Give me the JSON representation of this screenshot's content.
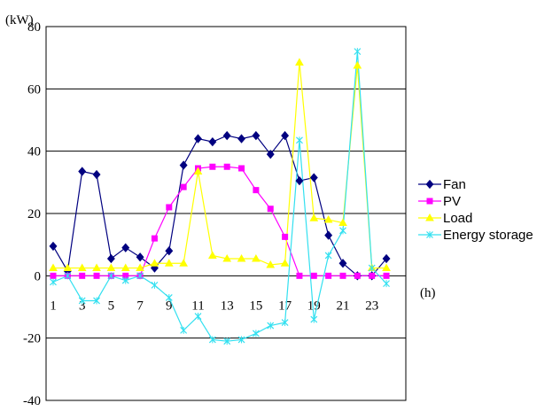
{
  "chart_data": {
    "type": "line",
    "y_unit_label": "(kW)",
    "x_unit_label": "(h)",
    "ylim": [
      -40,
      80
    ],
    "y_ticks": [
      "80",
      "60",
      "40",
      "20",
      "0",
      "-20",
      "-40"
    ],
    "y_tick_values": [
      80,
      60,
      40,
      20,
      0,
      -20,
      -40
    ],
    "gridlines_at": [
      60,
      40,
      20,
      -20
    ],
    "x": [
      1,
      2,
      3,
      4,
      5,
      6,
      7,
      8,
      9,
      10,
      11,
      12,
      13,
      14,
      15,
      16,
      17,
      18,
      19,
      20,
      21,
      22,
      23,
      24
    ],
    "x_tick_labels": [
      "1",
      "3",
      "5",
      "7",
      "9",
      "11",
      "13",
      "15",
      "17",
      "19",
      "21",
      "23"
    ],
    "x_tick_values": [
      1,
      3,
      5,
      7,
      9,
      11,
      13,
      15,
      17,
      19,
      21,
      23
    ],
    "legend_position": "right",
    "series": [
      {
        "name": "Fan",
        "color": "#000080",
        "marker": "diamond",
        "values": [
          9.5,
          1.5,
          33.5,
          32.5,
          5.5,
          9,
          6,
          2.5,
          8,
          35.5,
          44,
          43,
          45,
          44,
          45,
          39,
          45,
          30.5,
          31.5,
          13,
          4,
          0,
          0,
          5.5
        ]
      },
      {
        "name": "PV",
        "color": "#ff00ff",
        "marker": "square",
        "values": [
          0,
          0,
          0,
          0,
          0,
          0,
          0,
          12,
          22,
          28.5,
          34.5,
          35,
          35,
          34.5,
          27.5,
          21.5,
          12.5,
          0,
          0,
          0,
          0,
          0,
          0,
          0
        ]
      },
      {
        "name": "Load",
        "color": "#ffff00",
        "marker": "triangle",
        "values": [
          2.5,
          2.5,
          2.5,
          2.5,
          2.5,
          2.5,
          2.5,
          4,
          4,
          4,
          33.5,
          6.5,
          5.5,
          5.5,
          5.5,
          3.5,
          4,
          68.5,
          18.5,
          18,
          17,
          67.5,
          2.5,
          2.5
        ]
      },
      {
        "name": "Energy storage",
        "color": "#33e0f0",
        "marker": "x",
        "values": [
          -2,
          0,
          -8,
          -8,
          0,
          -1.5,
          0,
          -3,
          -7,
          -17.5,
          -13,
          -20.5,
          -21,
          -20.5,
          -18.5,
          -16,
          -15,
          43.5,
          -14,
          6.5,
          14.5,
          72,
          2.5,
          -2.5
        ]
      }
    ]
  }
}
